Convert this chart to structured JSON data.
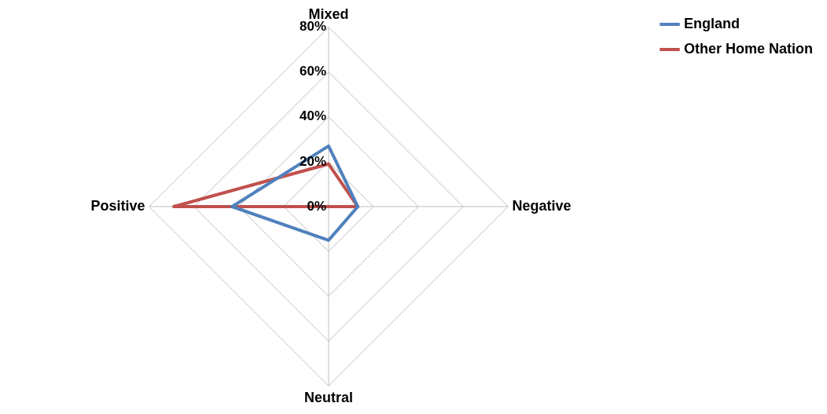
{
  "chart_data": {
    "type": "radar",
    "categories": [
      "Mixed",
      "Negative",
      "Neutral",
      "Positive"
    ],
    "series": [
      {
        "name": "England",
        "color": "#4f81bd",
        "values": [
          27,
          13,
          15,
          43
        ]
      },
      {
        "name": "Other Home Nation",
        "color": "#c0504d",
        "values": [
          19,
          13,
          0,
          69
        ]
      }
    ],
    "ylim": [
      0,
      80
    ],
    "yticks": [
      {
        "value": 0,
        "label": "0%"
      },
      {
        "value": 20,
        "label": "20%"
      },
      {
        "value": 40,
        "label": "40%"
      },
      {
        "value": 60,
        "label": "60%"
      },
      {
        "value": 80,
        "label": "80%"
      }
    ],
    "grid": true,
    "legend": "top right",
    "marker": "none",
    "line_style": "solid"
  }
}
